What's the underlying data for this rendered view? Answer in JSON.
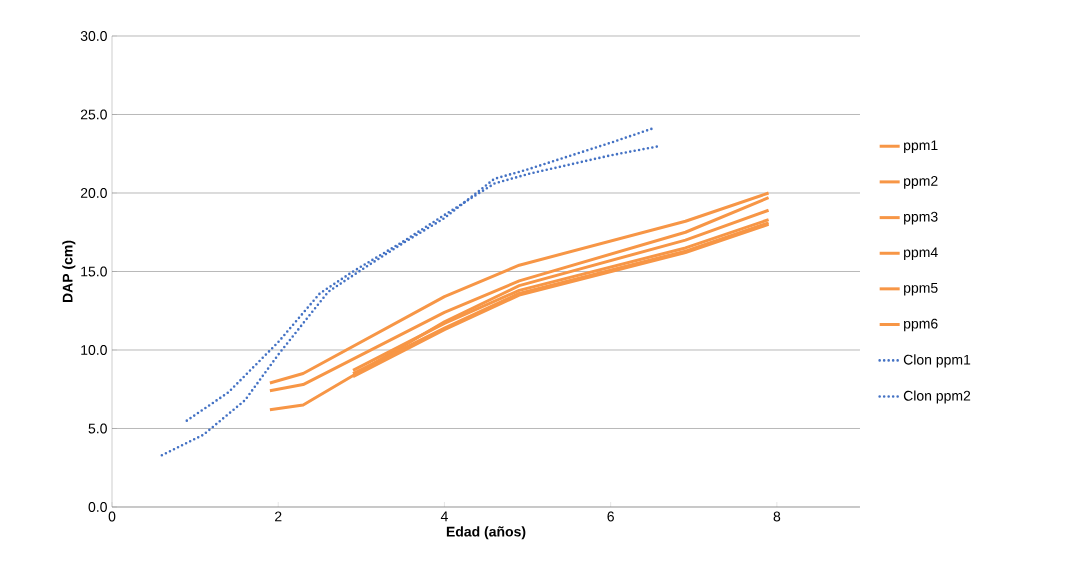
{
  "chart_data": {
    "type": "line",
    "xlabel": "Edad (años)",
    "ylabel": "DAP (cm)",
    "xlim": [
      0,
      9
    ],
    "xticks": [
      0,
      2,
      4,
      6,
      8
    ],
    "ylim": [
      0,
      30
    ],
    "yticks": [
      {
        "value": 0,
        "label": "0.0"
      },
      {
        "value": 5,
        "label": "5.0"
      },
      {
        "value": 10,
        "label": "10.0"
      },
      {
        "value": 15,
        "label": "15.0"
      },
      {
        "value": 20,
        "label": "20.0"
      },
      {
        "value": 25,
        "label": "25.0"
      },
      {
        "value": 30,
        "label": "30.0"
      }
    ],
    "grid": "y",
    "legend": "right",
    "marker": "none",
    "series": [
      {
        "name": "ppm1",
        "color": "#f79646",
        "line_style": "solid",
        "x": [
          1.9,
          2.3,
          4.0,
          4.9,
          6.9,
          7.9
        ],
        "values": [
          7.9,
          8.5,
          13.4,
          15.4,
          18.2,
          20.0
        ]
      },
      {
        "name": "ppm2",
        "color": "#f79646",
        "line_style": "solid",
        "x": [
          1.9,
          2.3,
          4.0,
          4.9,
          6.9,
          7.9
        ],
        "values": [
          7.4,
          7.8,
          12.4,
          14.4,
          17.5,
          19.7
        ]
      },
      {
        "name": "ppm3",
        "color": "#f79646",
        "line_style": "solid",
        "x": [
          1.9,
          2.3,
          4.0,
          4.9,
          6.9,
          7.9
        ],
        "values": [
          6.2,
          6.5,
          11.8,
          14.1,
          17.0,
          18.9
        ]
      },
      {
        "name": "ppm4",
        "color": "#f79646",
        "line_style": "solid",
        "x": [
          2.9,
          4.0,
          4.9,
          6.9,
          7.9
        ],
        "values": [
          8.7,
          11.7,
          13.8,
          16.5,
          18.3
        ]
      },
      {
        "name": "ppm5",
        "color": "#f79646",
        "line_style": "solid",
        "x": [
          2.9,
          4.0,
          4.9,
          6.9,
          7.9
        ],
        "values": [
          8.5,
          11.4,
          13.6,
          16.3,
          18.1
        ]
      },
      {
        "name": "ppm6",
        "color": "#f79646",
        "line_style": "solid",
        "x": [
          2.9,
          4.0,
          4.9,
          6.9,
          7.9
        ],
        "values": [
          8.3,
          11.3,
          13.5,
          16.2,
          18.0
        ]
      },
      {
        "name": "Clon ppm1",
        "color": "#4472c4",
        "line_style": "dotted",
        "x": [
          0.9,
          1.4,
          2.0,
          2.5,
          2.9,
          3.5,
          4.0,
          4.6,
          5.0,
          6.0,
          6.6
        ],
        "values": [
          5.5,
          7.3,
          10.5,
          13.6,
          15.0,
          16.9,
          18.6,
          20.6,
          21.2,
          22.4,
          23.0
        ]
      },
      {
        "name": "Clon ppm2",
        "color": "#4472c4",
        "line_style": "dotted",
        "x": [
          0.6,
          1.1,
          1.6,
          2.0,
          2.6,
          3.0,
          3.5,
          4.0,
          4.6,
          5.0,
          6.0,
          6.5
        ],
        "values": [
          3.3,
          4.6,
          6.8,
          9.7,
          13.7,
          15.1,
          16.8,
          18.4,
          20.9,
          21.5,
          23.2,
          24.1
        ]
      }
    ]
  }
}
